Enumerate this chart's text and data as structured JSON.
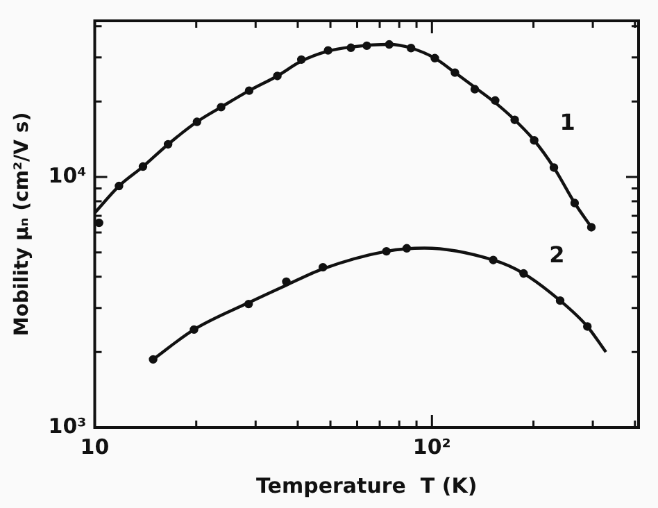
{
  "chart_data": {
    "type": "scatter",
    "xlabel": "Temperature  T (K)",
    "ylabel": "Mobility μₙ (cm²/V s)",
    "log": "xy",
    "grid": false,
    "legend": false,
    "xlim": [
      10,
      410
    ],
    "ylim": [
      1000,
      42000
    ],
    "xticks": [
      {
        "value": 10,
        "label": "10"
      },
      {
        "value": 20,
        "label": null
      },
      {
        "value": 30,
        "label": null
      },
      {
        "value": 40,
        "label": null
      },
      {
        "value": 50,
        "label": null
      },
      {
        "value": 60,
        "label": null
      },
      {
        "value": 70,
        "label": null
      },
      {
        "value": 80,
        "label": null
      },
      {
        "value": 90,
        "label": null
      },
      {
        "value": 100,
        "label": "10²"
      },
      {
        "value": 200,
        "label": null
      },
      {
        "value": 300,
        "label": null
      },
      {
        "value": 400,
        "label": null
      }
    ],
    "yticks": [
      {
        "value": 1000,
        "label": "10³"
      },
      {
        "value": 2000,
        "label": null
      },
      {
        "value": 3000,
        "label": null
      },
      {
        "value": 4000,
        "label": null
      },
      {
        "value": 5000,
        "label": null
      },
      {
        "value": 6000,
        "label": null
      },
      {
        "value": 7000,
        "label": null
      },
      {
        "value": 8000,
        "label": null
      },
      {
        "value": 9000,
        "label": null
      },
      {
        "value": 10000,
        "label": "10⁴"
      },
      {
        "value": 20000,
        "label": null
      },
      {
        "value": 30000,
        "label": null
      },
      {
        "value": 40000,
        "label": null
      }
    ],
    "series": [
      {
        "marker": "circle",
        "color": "#111111",
        "x": [
          10.3,
          11.8,
          13.9,
          16.5,
          20.1,
          23.7,
          28.7,
          34.8,
          41,
          49.2,
          57.5,
          64.1,
          74.7,
          86.7,
          102,
          117,
          134,
          154,
          176,
          201,
          230,
          265,
          297
        ],
        "values": [
          6560,
          9200,
          11000,
          13500,
          16600,
          19000,
          22100,
          25300,
          29400,
          32000,
          32800,
          33400,
          33800,
          32700,
          29800,
          26100,
          22400,
          20200,
          16900,
          14000,
          10900,
          7870,
          6300
        ]
      },
      {
        "marker": "circle",
        "color": "#111111",
        "x": [
          14.9,
          19.7,
          28.6,
          37,
          47.5,
          73.3,
          84.2,
          152,
          187,
          240,
          289
        ],
        "values": [
          1870,
          2460,
          3110,
          3820,
          4360,
          5050,
          5190,
          4660,
          4120,
          3210,
          2530
        ]
      },
      {
        "type": "line",
        "name": "1",
        "marker": "none",
        "color": "#111111",
        "x": [
          10,
          11.8,
          13.9,
          16.5,
          20.1,
          23.7,
          28.7,
          34.8,
          41,
          49.2,
          57.5,
          74.7,
          86.7,
          102,
          117,
          134,
          154,
          176,
          201,
          230,
          265,
          297
        ],
        "values": [
          7190,
          9200,
          11000,
          13500,
          16600,
          19000,
          22100,
          25300,
          29000,
          31800,
          33000,
          33800,
          32700,
          29800,
          26100,
          22800,
          19800,
          16900,
          14000,
          10900,
          7870,
          6300
        ]
      },
      {
        "type": "line",
        "name": "2",
        "marker": "none",
        "color": "#111111",
        "x": [
          14.9,
          19.7,
          28.6,
          37,
          47.5,
          73.3,
          95,
          152,
          187,
          240,
          289,
          328
        ],
        "values": [
          1870,
          2460,
          3150,
          3700,
          4300,
          5050,
          5200,
          4660,
          4120,
          3210,
          2530,
          2000
        ]
      }
    ]
  }
}
